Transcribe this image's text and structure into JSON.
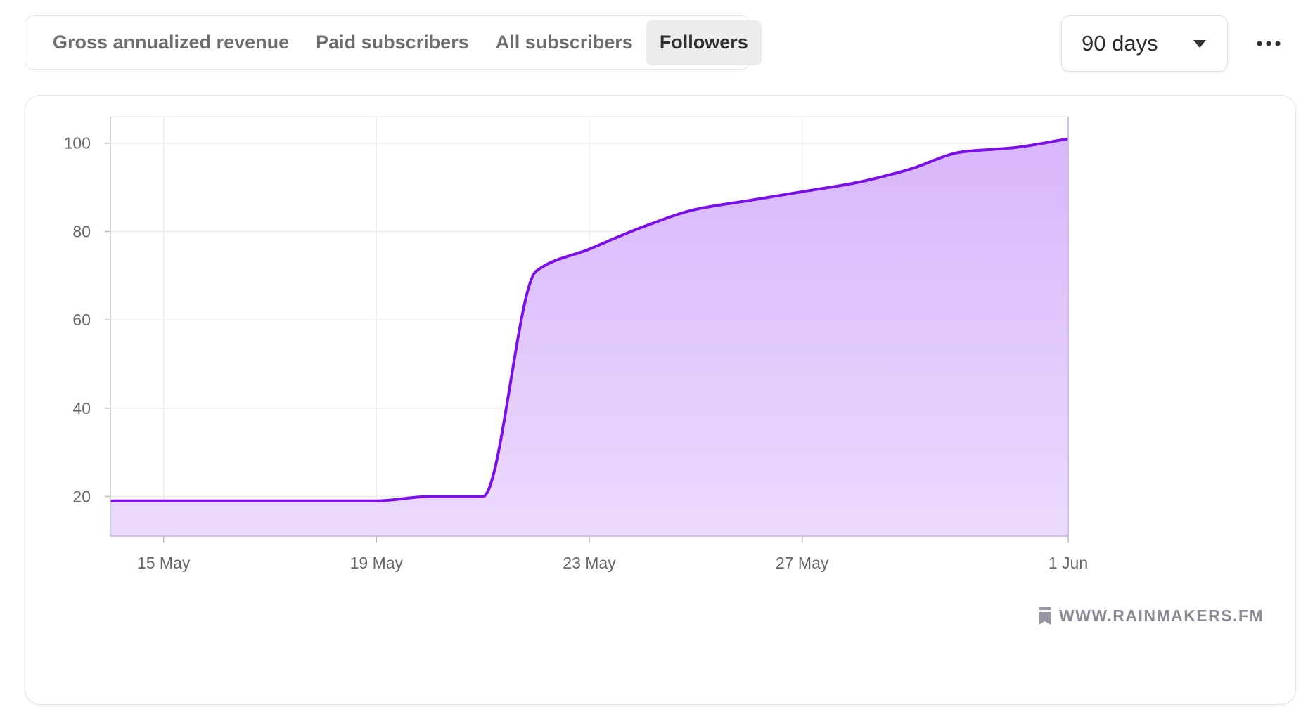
{
  "tabs": [
    {
      "label": "Gross annualized revenue",
      "active": false
    },
    {
      "label": "Paid subscribers",
      "active": false
    },
    {
      "label": "All subscribers",
      "active": false
    },
    {
      "label": "Followers",
      "active": true
    }
  ],
  "range_select": {
    "value": "90 days"
  },
  "watermark": "WWW.RAINMAKERS.FM",
  "colors": {
    "line": "#7b0fe8",
    "fill_top": "#d8b6fb",
    "fill_bottom": "#ebdafd",
    "grid": "#ececec"
  },
  "icons": {
    "more": "more-dots-icon",
    "dropdown": "chevron-down-icon",
    "watermark": "bookmark-icon"
  },
  "chart_data": {
    "type": "area",
    "title": "",
    "xlabel": "",
    "ylabel": "",
    "x_ticks": [
      "15 May",
      "19 May",
      "23 May",
      "27 May",
      "1 Jun"
    ],
    "y_ticks": [
      20,
      40,
      60,
      80,
      100
    ],
    "ylim": [
      11,
      106
    ],
    "xlim": [
      "2024-05-14",
      "2024-06-01"
    ],
    "grid": true,
    "series": [
      {
        "x": [
          "2024-05-14",
          "2024-05-15",
          "2024-05-16",
          "2024-05-17",
          "2024-05-18",
          "2024-05-19",
          "2024-05-20",
          "2024-05-21",
          "2024-05-22",
          "2024-05-23",
          "2024-05-24",
          "2024-05-25",
          "2024-05-26",
          "2024-05-27",
          "2024-05-28",
          "2024-05-29",
          "2024-05-30",
          "2024-05-31",
          "2024-06-01"
        ],
        "y": [
          19,
          19,
          19,
          19,
          19,
          19,
          20,
          20,
          71,
          76,
          81,
          85,
          87,
          89,
          91,
          94,
          98,
          99,
          101
        ]
      }
    ]
  }
}
